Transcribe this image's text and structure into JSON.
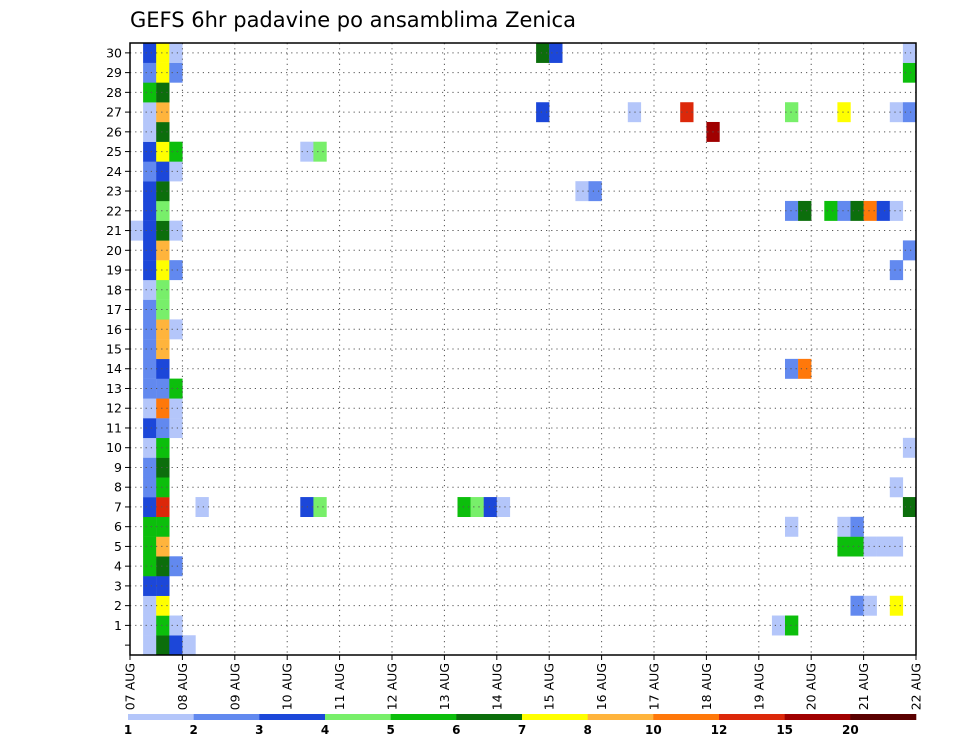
{
  "chart_data": {
    "type": "heatmap",
    "title": "GEFS 6hr padavine po ansamblima Zenica",
    "xlabel": "",
    "ylabel": "",
    "x_tick_labels": [
      "07 AUG",
      "08 AUG",
      "09 AUG",
      "10 AUG",
      "11 AUG",
      "12 AUG",
      "13 AUG",
      "14 AUG",
      "15 AUG",
      "16 AUG",
      "17 AUG",
      "18 AUG",
      "19 AUG",
      "20 AUG",
      "21 AUG",
      "22 AUG"
    ],
    "y_tick_labels": [
      "0",
      "1",
      "2",
      "3",
      "4",
      "5",
      "6",
      "7",
      "8",
      "9",
      "10",
      "11",
      "12",
      "13",
      "14",
      "15",
      "16",
      "17",
      "18",
      "19",
      "20",
      "21",
      "22",
      "23",
      "24",
      "25",
      "26",
      "27",
      "28",
      "29",
      "30"
    ],
    "x_range_days": [
      0,
      15
    ],
    "time_steps_per_day": 4,
    "members_range": [
      0,
      30
    ],
    "grid": true,
    "legend_placement": "bottom",
    "legend_labels": [
      "1",
      "2",
      "3",
      "4",
      "5",
      "6",
      "7",
      "8",
      "10",
      "12",
      "15",
      "20"
    ],
    "legend_colors": [
      "#b4c6fa",
      "#6289ef",
      "#1c47d9",
      "#78ef6a",
      "#0cbe0c",
      "#0c6e0c",
      "#ffff00",
      "#ffb43c",
      "#ff780a",
      "#dc280a",
      "#a00000",
      "#5a0000"
    ],
    "cells_note": "each cell: [time_step (6h from 07 AUG 00Z), ensemble_member, class_index 0-11]",
    "cells": [
      [
        0,
        21,
        0
      ],
      [
        1,
        0,
        0
      ],
      [
        1,
        1,
        0
      ],
      [
        1,
        2,
        0
      ],
      [
        1,
        3,
        2
      ],
      [
        1,
        4,
        4
      ],
      [
        1,
        5,
        4
      ],
      [
        1,
        6,
        4
      ],
      [
        1,
        7,
        2
      ],
      [
        1,
        8,
        1
      ],
      [
        1,
        9,
        1
      ],
      [
        1,
        10,
        0
      ],
      [
        1,
        11,
        2
      ],
      [
        1,
        12,
        0
      ],
      [
        1,
        13,
        1
      ],
      [
        1,
        14,
        1
      ],
      [
        1,
        15,
        1
      ],
      [
        1,
        16,
        1
      ],
      [
        1,
        17,
        1
      ],
      [
        1,
        18,
        0
      ],
      [
        1,
        19,
        2
      ],
      [
        1,
        20,
        2
      ],
      [
        1,
        21,
        2
      ],
      [
        1,
        22,
        2
      ],
      [
        1,
        23,
        2
      ],
      [
        1,
        24,
        1
      ],
      [
        1,
        25,
        2
      ],
      [
        1,
        26,
        0
      ],
      [
        1,
        27,
        0
      ],
      [
        1,
        28,
        4
      ],
      [
        1,
        29,
        1
      ],
      [
        1,
        30,
        2
      ],
      [
        2,
        0,
        5
      ],
      [
        2,
        1,
        4
      ],
      [
        2,
        2,
        6
      ],
      [
        2,
        3,
        2
      ],
      [
        2,
        4,
        5
      ],
      [
        2,
        5,
        7
      ],
      [
        2,
        6,
        4
      ],
      [
        2,
        7,
        9
      ],
      [
        2,
        8,
        4
      ],
      [
        2,
        9,
        5
      ],
      [
        2,
        10,
        4
      ],
      [
        2,
        11,
        1
      ],
      [
        2,
        12,
        8
      ],
      [
        2,
        13,
        1
      ],
      [
        2,
        14,
        2
      ],
      [
        2,
        15,
        7
      ],
      [
        2,
        16,
        7
      ],
      [
        2,
        17,
        3
      ],
      [
        2,
        18,
        3
      ],
      [
        2,
        19,
        6
      ],
      [
        2,
        20,
        7
      ],
      [
        2,
        21,
        5
      ],
      [
        2,
        22,
        3
      ],
      [
        2,
        23,
        5
      ],
      [
        2,
        24,
        2
      ],
      [
        2,
        25,
        6
      ],
      [
        2,
        26,
        5
      ],
      [
        2,
        27,
        7
      ],
      [
        2,
        28,
        5
      ],
      [
        2,
        29,
        6
      ],
      [
        2,
        30,
        6
      ],
      [
        3,
        0,
        2
      ],
      [
        3,
        1,
        0
      ],
      [
        3,
        4,
        1
      ],
      [
        3,
        12,
        0
      ],
      [
        3,
        13,
        4
      ],
      [
        3,
        11,
        0
      ],
      [
        3,
        16,
        0
      ],
      [
        3,
        19,
        1
      ],
      [
        3,
        21,
        0
      ],
      [
        3,
        24,
        0
      ],
      [
        3,
        25,
        4
      ],
      [
        3,
        29,
        1
      ],
      [
        3,
        30,
        0
      ],
      [
        4,
        0,
        0
      ],
      [
        5,
        7,
        0
      ],
      [
        13,
        7,
        2
      ],
      [
        13,
        25,
        0
      ],
      [
        14,
        7,
        3
      ],
      [
        14,
        25,
        3
      ],
      [
        25,
        7,
        4
      ],
      [
        26,
        7,
        3
      ],
      [
        27,
        7,
        2
      ],
      [
        28,
        7,
        0
      ],
      [
        31,
        27,
        2
      ],
      [
        31,
        30,
        5
      ],
      [
        32,
        30,
        2
      ],
      [
        34,
        23,
        0
      ],
      [
        35,
        23,
        1
      ],
      [
        38,
        27,
        0
      ],
      [
        42,
        27,
        9
      ],
      [
        44,
        26,
        10
      ],
      [
        49,
        1,
        0
      ],
      [
        50,
        1,
        4
      ],
      [
        50,
        6,
        0
      ],
      [
        50,
        14,
        1
      ],
      [
        50,
        22,
        1
      ],
      [
        50,
        27,
        3
      ],
      [
        51,
        14,
        8
      ],
      [
        51,
        22,
        5
      ],
      [
        53,
        22,
        4
      ],
      [
        54,
        5,
        4
      ],
      [
        54,
        6,
        0
      ],
      [
        54,
        22,
        1
      ],
      [
        54,
        27,
        6
      ],
      [
        55,
        5,
        4
      ],
      [
        55,
        2,
        1
      ],
      [
        55,
        6,
        1
      ],
      [
        55,
        22,
        5
      ],
      [
        56,
        2,
        0
      ],
      [
        56,
        5,
        0
      ],
      [
        56,
        22,
        8
      ],
      [
        57,
        5,
        0
      ],
      [
        57,
        22,
        2
      ],
      [
        58,
        2,
        6
      ],
      [
        58,
        5,
        0
      ],
      [
        58,
        8,
        0
      ],
      [
        58,
        19,
        1
      ],
      [
        58,
        22,
        0
      ],
      [
        58,
        27,
        0
      ],
      [
        59,
        7,
        5
      ],
      [
        59,
        10,
        0
      ],
      [
        59,
        20,
        1
      ],
      [
        59,
        27,
        1
      ],
      [
        59,
        29,
        4
      ],
      [
        59,
        30,
        0
      ]
    ]
  }
}
